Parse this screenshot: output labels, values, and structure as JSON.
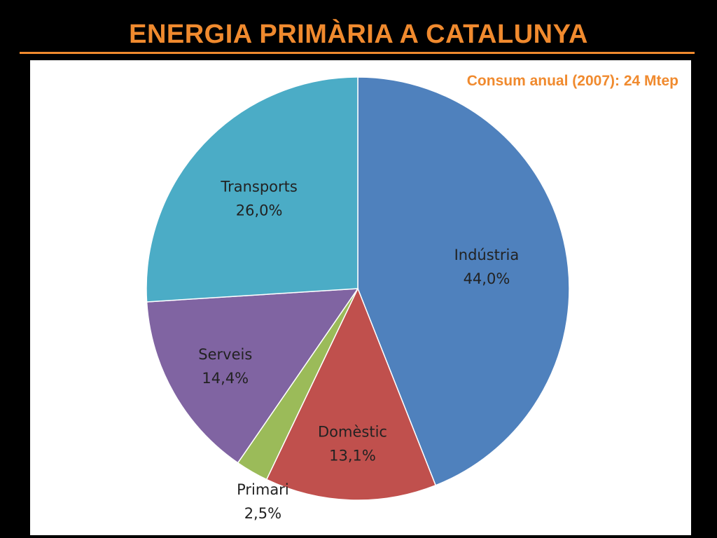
{
  "slide": {
    "title": "ENERGIA PRIMÀRIA A CATALUNYA",
    "title_color": "#F08A2E",
    "rule_color": "#F08A2E",
    "background_color": "#000000"
  },
  "chart_data": {
    "type": "pie",
    "title": "ENERGIA PRIMÀRIA A CATALUNYA",
    "subtitle": "Consum anual (2007): 24 Mtep",
    "start_angle_deg": 0,
    "direction": "clockwise",
    "categories": [
      "Indústria",
      "Domèstic",
      "Primari",
      "Serveis",
      "Transports"
    ],
    "values": [
      44.0,
      13.1,
      2.5,
      14.4,
      26.0
    ],
    "value_labels": [
      "44,0%",
      "13,1%",
      "2,5%",
      "14,4%",
      "26,0%"
    ],
    "colors": [
      "#4F81BD",
      "#C0504D",
      "#9BBB59",
      "#8064A2",
      "#4BACC6"
    ],
    "legend": "none",
    "data_labels": "category and percentage"
  }
}
